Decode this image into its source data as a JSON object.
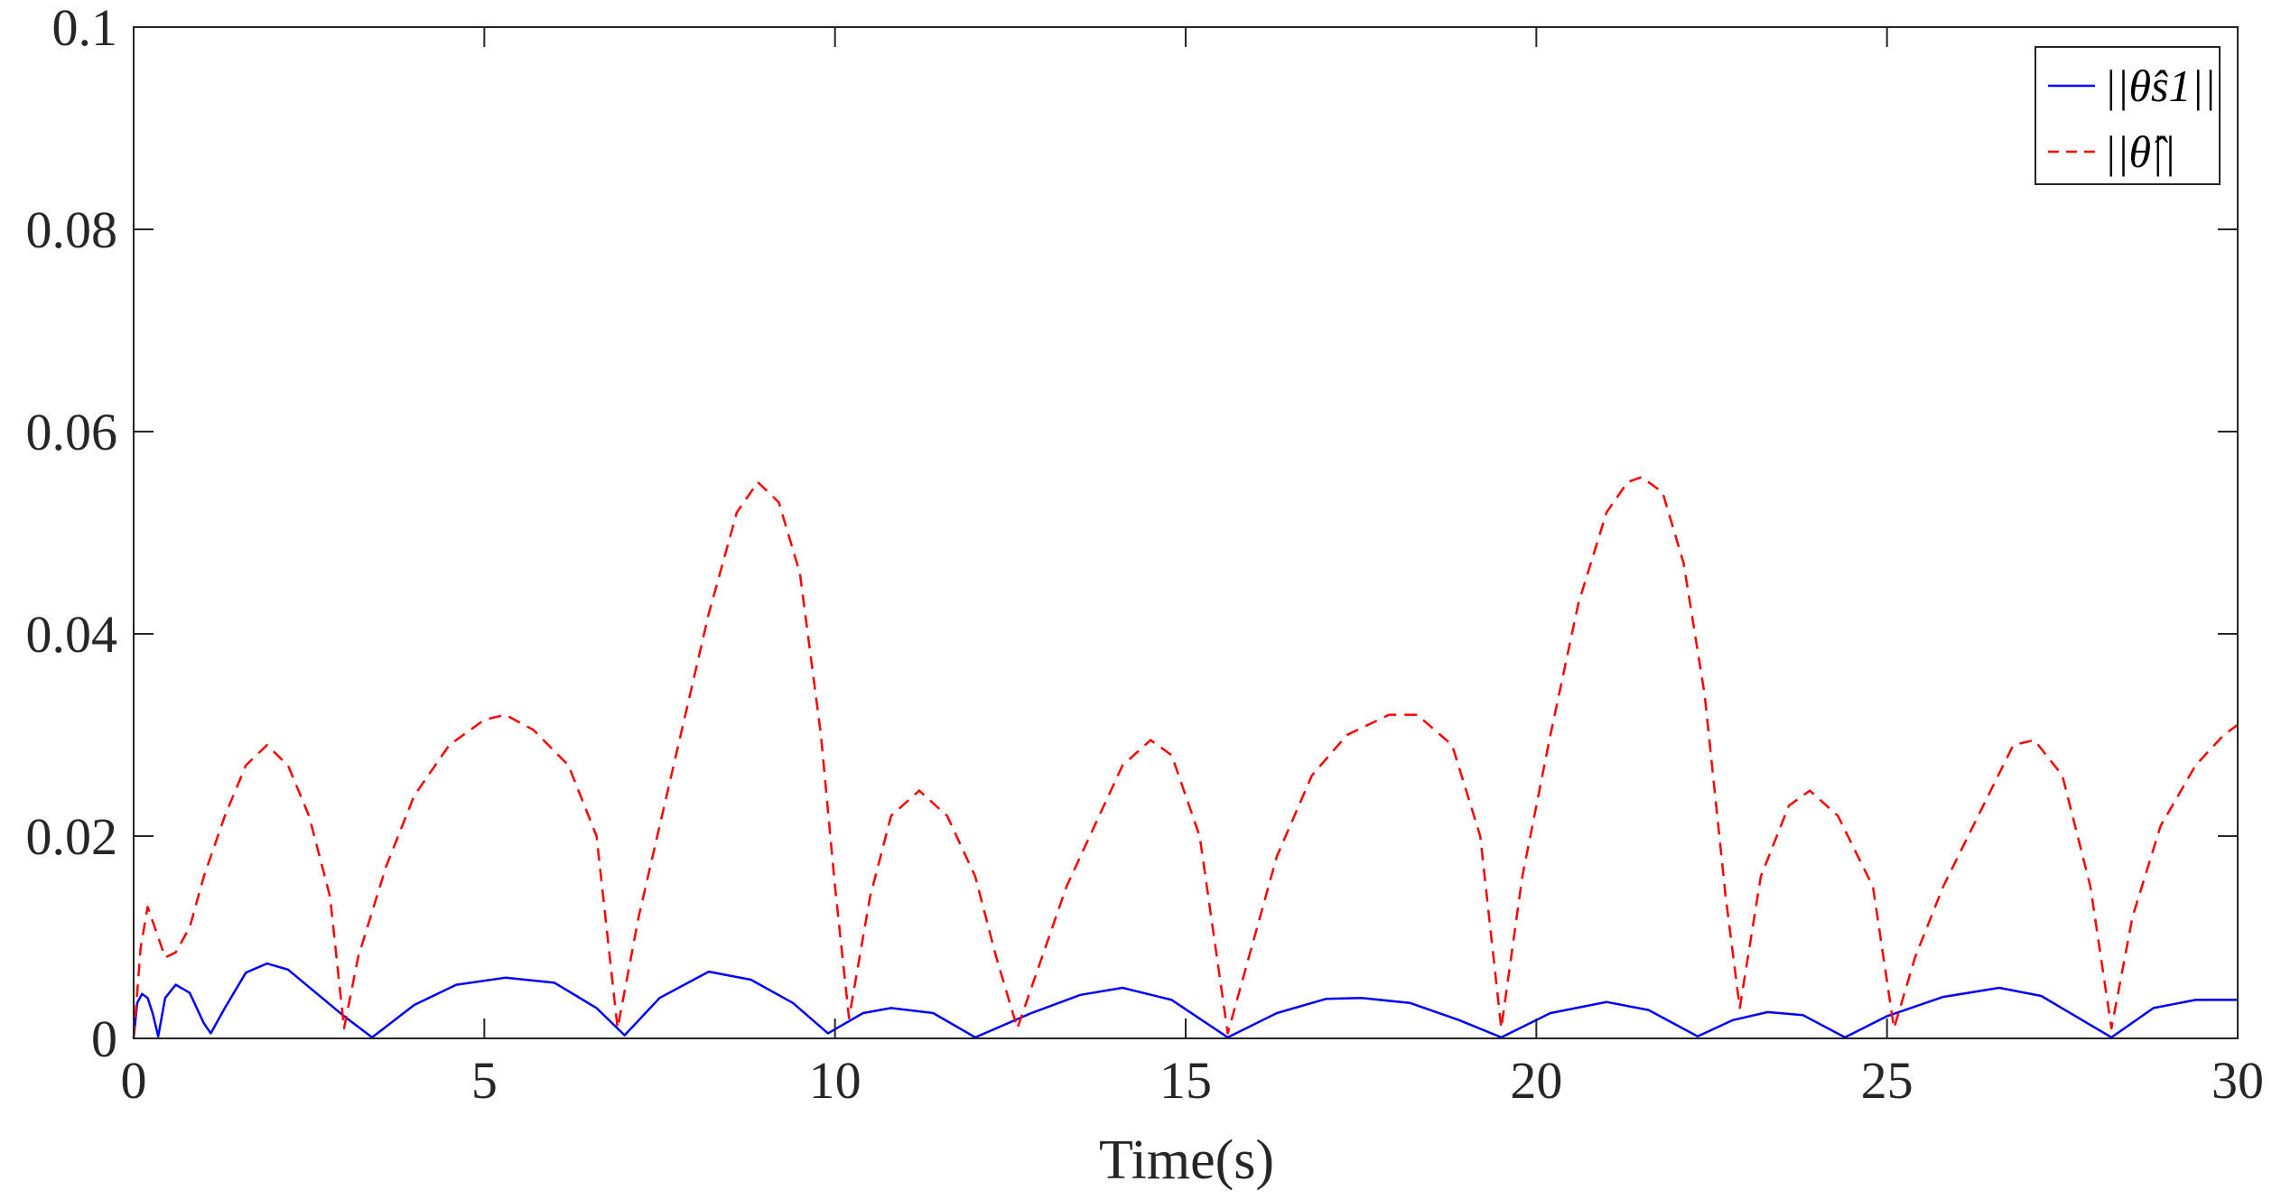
{
  "chart_data": {
    "type": "line",
    "title": "",
    "xlabel": "Time(s)",
    "ylabel": "",
    "xlim": [
      0,
      30
    ],
    "ylim": [
      0,
      0.1
    ],
    "xticks": [
      0,
      5,
      10,
      15,
      20,
      25,
      30
    ],
    "xtick_labels": [
      "0",
      "5",
      "10",
      "15",
      "20",
      "25",
      "30"
    ],
    "yticks": [
      0,
      0.02,
      0.04,
      0.06,
      0.08,
      0.1
    ],
    "ytick_labels": [
      "0",
      "0.02",
      "0.04",
      "0.06",
      "0.08",
      "0.1"
    ],
    "grid": false,
    "box": true,
    "legend": {
      "placement": "top-right",
      "entries": [
        "||θ̂s1||",
        "||θ̂||"
      ]
    },
    "series": [
      {
        "name": "||θ̂s1||",
        "color": "#0000FF",
        "style": "solid",
        "x": [
          0,
          0.05,
          0.12,
          0.2,
          0.27,
          0.35,
          0.45,
          0.6,
          0.8,
          1.0,
          1.1,
          1.3,
          1.6,
          1.9,
          2.2,
          2.6,
          3.0,
          3.4,
          4.0,
          4.6,
          5.3,
          6.0,
          6.6,
          7.0,
          7.5,
          8.2,
          8.8,
          9.4,
          9.9,
          10.4,
          10.8,
          11.4,
          12.0,
          12.8,
          13.5,
          14.1,
          14.8,
          15.6,
          16.3,
          17.0,
          17.5,
          18.2,
          18.9,
          19.5,
          20.2,
          21.0,
          21.6,
          22.3,
          22.8,
          23.3,
          23.8,
          24.4,
          25.0,
          25.8,
          26.6,
          27.2,
          28.2,
          28.8,
          29.4,
          30.0
        ],
        "y": [
          0,
          0.0035,
          0.0044,
          0.004,
          0.0025,
          0.0002,
          0.004,
          0.0053,
          0.0045,
          0.0015,
          0.0005,
          0.003,
          0.0065,
          0.0074,
          0.0068,
          0.0045,
          0.0022,
          0.0001,
          0.0033,
          0.0053,
          0.006,
          0.0055,
          0.003,
          0.0003,
          0.004,
          0.0066,
          0.0058,
          0.0035,
          0.0005,
          0.0025,
          0.003,
          0.0025,
          0.0001,
          0.0025,
          0.0043,
          0.005,
          0.0038,
          0.0001,
          0.0025,
          0.0039,
          0.004,
          0.0035,
          0.0018,
          0.0001,
          0.0025,
          0.0036,
          0.0028,
          0.0002,
          0.0018,
          0.0026,
          0.0023,
          0.0001,
          0.0022,
          0.0041,
          0.005,
          0.0042,
          0.0001,
          0.003,
          0.0038,
          0.0038
        ]
      },
      {
        "name": "||θ̂||",
        "color": "#FF0000",
        "style": "dashed",
        "x": [
          0,
          0.1,
          0.2,
          0.3,
          0.45,
          0.6,
          0.8,
          1.0,
          1.3,
          1.6,
          1.9,
          2.2,
          2.5,
          2.8,
          3.0,
          3.2,
          3.6,
          4.0,
          4.5,
          5.0,
          5.3,
          5.7,
          6.2,
          6.6,
          6.9,
          7.2,
          7.7,
          8.2,
          8.6,
          8.9,
          9.2,
          9.5,
          9.8,
          10.0,
          10.2,
          10.5,
          10.8,
          11.2,
          11.6,
          12.0,
          12.3,
          12.6,
          12.9,
          13.3,
          13.7,
          14.1,
          14.5,
          14.8,
          15.2,
          15.6,
          15.9,
          16.3,
          16.8,
          17.3,
          17.9,
          18.3,
          18.8,
          19.2,
          19.5,
          19.8,
          20.2,
          20.6,
          21.0,
          21.3,
          21.5,
          21.8,
          22.1,
          22.4,
          22.7,
          22.9,
          23.2,
          23.6,
          23.9,
          24.3,
          24.8,
          25.1,
          25.4,
          25.8,
          26.3,
          26.8,
          27.1,
          27.5,
          27.9,
          28.2,
          28.5,
          28.9,
          29.4,
          29.8,
          30.0
        ],
        "y": [
          0,
          0.009,
          0.013,
          0.011,
          0.008,
          0.0085,
          0.011,
          0.016,
          0.022,
          0.027,
          0.029,
          0.027,
          0.022,
          0.014,
          0.001,
          0.008,
          0.017,
          0.024,
          0.029,
          0.0315,
          0.032,
          0.0305,
          0.027,
          0.02,
          0.001,
          0.012,
          0.027,
          0.042,
          0.052,
          0.055,
          0.053,
          0.046,
          0.03,
          0.015,
          0.002,
          0.014,
          0.022,
          0.0245,
          0.022,
          0.016,
          0.008,
          0.001,
          0.007,
          0.015,
          0.021,
          0.027,
          0.0295,
          0.028,
          0.02,
          0.0005,
          0.008,
          0.018,
          0.026,
          0.03,
          0.032,
          0.032,
          0.029,
          0.02,
          0.001,
          0.016,
          0.03,
          0.043,
          0.052,
          0.055,
          0.0555,
          0.054,
          0.047,
          0.034,
          0.014,
          0.003,
          0.016,
          0.023,
          0.0245,
          0.022,
          0.015,
          0.001,
          0.008,
          0.015,
          0.022,
          0.029,
          0.0295,
          0.026,
          0.015,
          0.001,
          0.012,
          0.021,
          0.027,
          0.03,
          0.031
        ]
      }
    ]
  }
}
